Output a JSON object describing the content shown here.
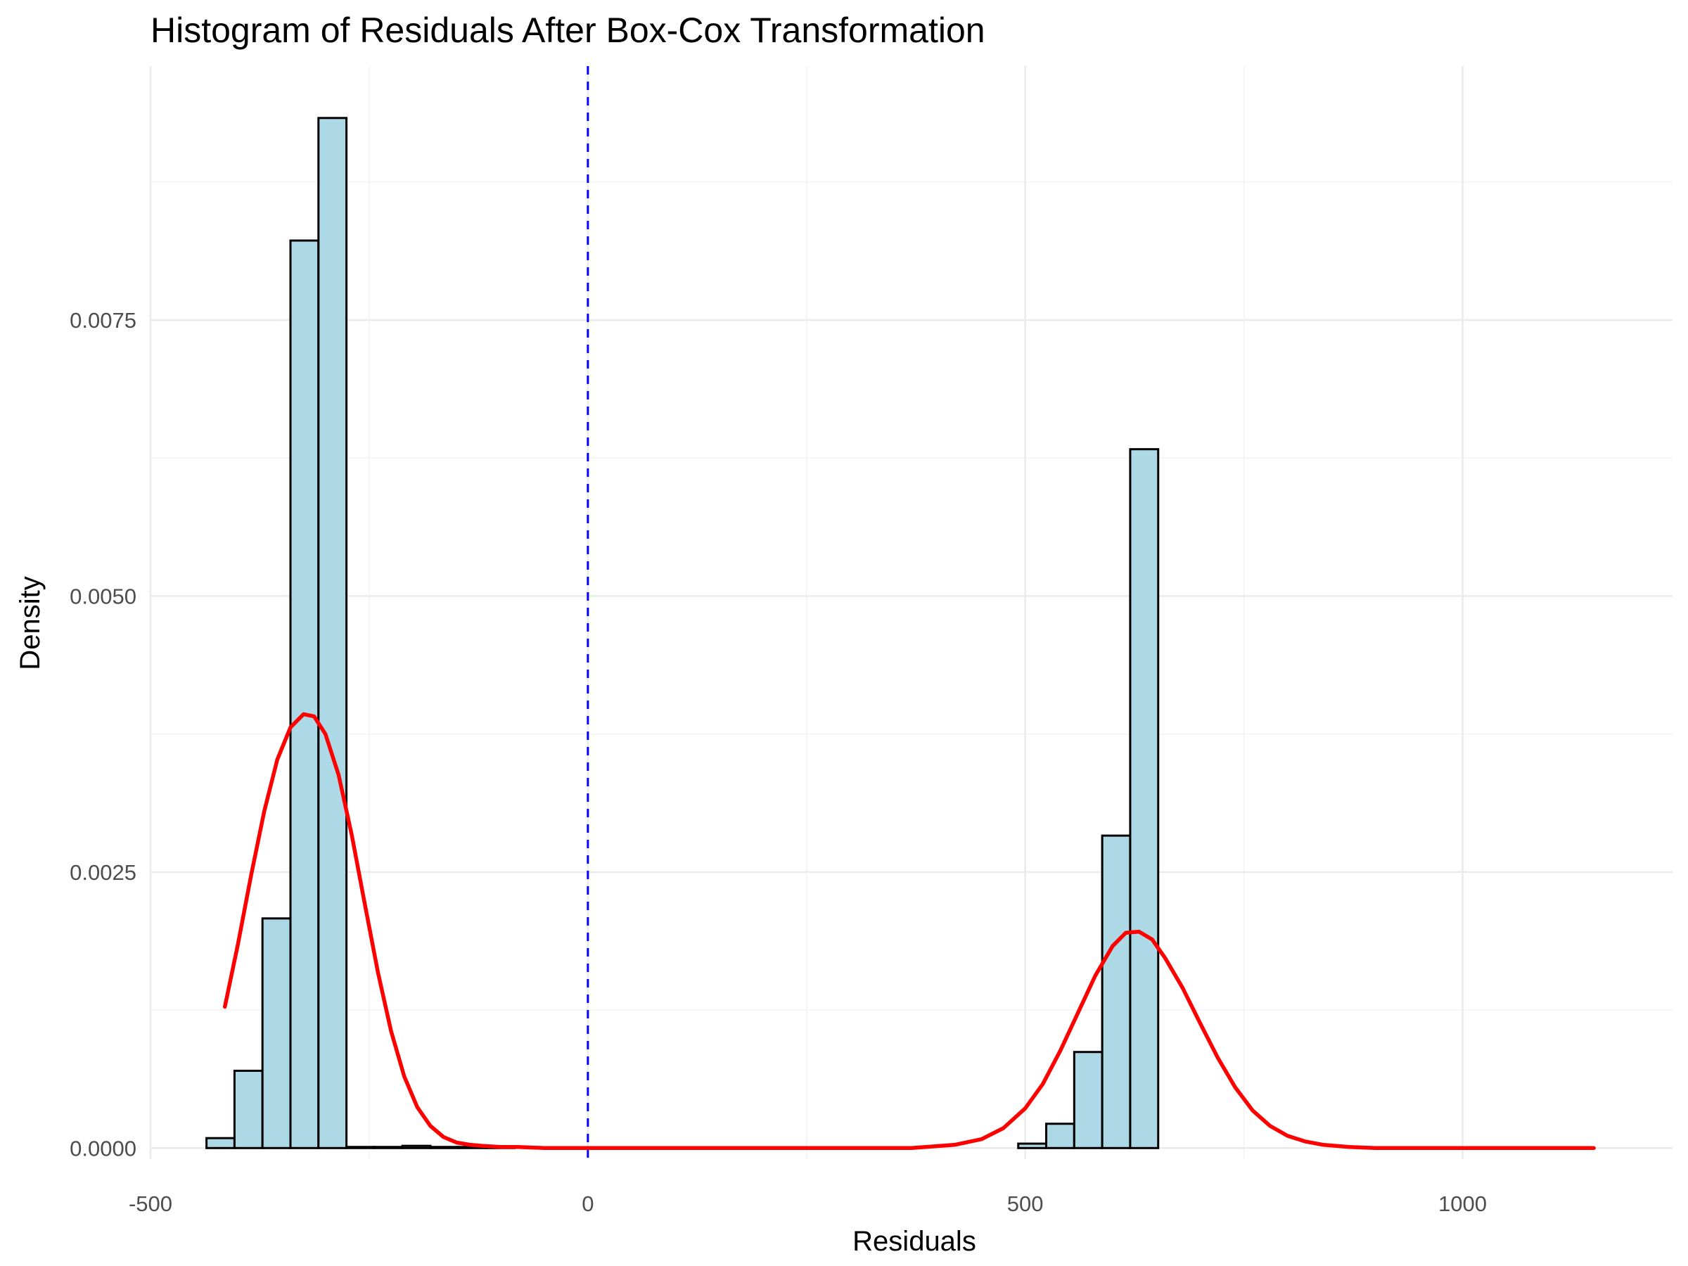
{
  "chart_data": {
    "type": "bar",
    "subtype": "histogram",
    "title": "Histogram of Residuals After Box-Cox Transformation",
    "xlabel": "Residuals",
    "ylabel": "Density",
    "xlim": [
      -500,
      1240
    ],
    "ylim": [
      -0.0001,
      0.0098
    ],
    "x_ticks": [
      -500,
      0,
      500,
      1000
    ],
    "x_tick_labels": [
      "-500",
      "0",
      "500",
      "1000"
    ],
    "y_ticks": [
      0,
      0.0025,
      0.005,
      0.0075
    ],
    "y_tick_labels": [
      "0.0000",
      "0.0025",
      "0.0050",
      "0.0075"
    ],
    "grid": true,
    "legend": "none",
    "colors": {
      "bar_fill": "#add8e6",
      "bar_outline": "#000000",
      "density_line": "#ff0000",
      "reference_line": "#0000ff"
    },
    "bins": [
      {
        "x0": -436,
        "x1": -404,
        "density": 9e-05
      },
      {
        "x0": -404,
        "x1": -372,
        "density": 0.0007
      },
      {
        "x0": -372,
        "x1": -340,
        "density": 0.00208
      },
      {
        "x0": -340,
        "x1": -308,
        "density": 0.00822
      },
      {
        "x0": -308,
        "x1": -276,
        "density": 0.00933
      },
      {
        "x0": -276,
        "x1": -244,
        "density": 1e-05
      },
      {
        "x0": -244,
        "x1": -212,
        "density": 1e-05
      },
      {
        "x0": -212,
        "x1": -180,
        "density": 2e-05
      },
      {
        "x0": -180,
        "x1": -148,
        "density": 1e-05
      },
      {
        "x0": -148,
        "x1": -116,
        "density": 1e-05
      },
      {
        "x0": -116,
        "x1": -84,
        "density": 1e-05
      },
      {
        "x0": -84,
        "x1": -52,
        "density": 0.0
      },
      {
        "x0": -52,
        "x1": -20,
        "density": 0.0
      },
      {
        "x0": -20,
        "x1": 12,
        "density": 0.0
      },
      {
        "x0": 12,
        "x1": 44,
        "density": 0.0
      },
      {
        "x0": 44,
        "x1": 76,
        "density": 0.0
      },
      {
        "x0": 76,
        "x1": 108,
        "density": 0.0
      },
      {
        "x0": 108,
        "x1": 140,
        "density": 0.0
      },
      {
        "x0": 140,
        "x1": 172,
        "density": 0.0
      },
      {
        "x0": 172,
        "x1": 204,
        "density": 0.0
      },
      {
        "x0": 204,
        "x1": 236,
        "density": 0.0
      },
      {
        "x0": 236,
        "x1": 268,
        "density": 0.0
      },
      {
        "x0": 268,
        "x1": 300,
        "density": 0.0
      },
      {
        "x0": 300,
        "x1": 332,
        "density": 0.0
      },
      {
        "x0": 332,
        "x1": 364,
        "density": 0.0
      },
      {
        "x0": 364,
        "x1": 396,
        "density": 0.0
      },
      {
        "x0": 396,
        "x1": 428,
        "density": 0.0
      },
      {
        "x0": 428,
        "x1": 460,
        "density": 0.0
      },
      {
        "x0": 460,
        "x1": 492,
        "density": 0.0
      },
      {
        "x0": 492,
        "x1": 524,
        "density": 4e-05
      },
      {
        "x0": 524,
        "x1": 556,
        "density": 0.00022
      },
      {
        "x0": 556,
        "x1": 588,
        "density": 0.00087
      },
      {
        "x0": 588,
        "x1": 620,
        "density": 0.00283
      },
      {
        "x0": 620,
        "x1": 652,
        "density": 0.00633
      },
      {
        "x0": 652,
        "x1": 684,
        "density": 0.0
      },
      {
        "x0": 684,
        "x1": 716,
        "density": 0.0
      },
      {
        "x0": 716,
        "x1": 748,
        "density": 0.0
      },
      {
        "x0": 748,
        "x1": 780,
        "density": 0.0
      },
      {
        "x0": 780,
        "x1": 812,
        "density": 0.0
      },
      {
        "x0": 812,
        "x1": 844,
        "density": 0.0
      },
      {
        "x0": 844,
        "x1": 876,
        "density": 0.0
      },
      {
        "x0": 876,
        "x1": 908,
        "density": 0.0
      },
      {
        "x0": 908,
        "x1": 940,
        "density": 0.0
      },
      {
        "x0": 940,
        "x1": 972,
        "density": 0.0
      },
      {
        "x0": 972,
        "x1": 1004,
        "density": 0.0
      },
      {
        "x0": 1004,
        "x1": 1036,
        "density": 0.0
      },
      {
        "x0": 1036,
        "x1": 1068,
        "density": 0.0
      },
      {
        "x0": 1068,
        "x1": 1100,
        "density": 0.0
      },
      {
        "x0": 1100,
        "x1": 1132,
        "density": 0.0
      },
      {
        "x0": 1132,
        "x1": 1164,
        "density": 0.0
      },
      {
        "x0": 1164,
        "x1": 1196,
        "density": 0.0
      }
    ],
    "density_curve": {
      "x": [
        -415,
        -400,
        -385,
        -370,
        -355,
        -340,
        -325,
        -313,
        -300,
        -285,
        -270,
        -255,
        -240,
        -225,
        -210,
        -195,
        -180,
        -165,
        -150,
        -135,
        -120,
        -100,
        -80,
        -50,
        0,
        100,
        200,
        300,
        370,
        420,
        450,
        475,
        500,
        520,
        540,
        560,
        580,
        600,
        615,
        630,
        645,
        660,
        680,
        700,
        720,
        740,
        760,
        780,
        800,
        820,
        840,
        870,
        900,
        1000,
        1100,
        1150
      ],
      "y": [
        0.00128,
        0.00185,
        0.00247,
        0.00305,
        0.00352,
        0.00381,
        0.00393,
        0.00391,
        0.00375,
        0.00338,
        0.00284,
        0.00221,
        0.00159,
        0.00106,
        0.00065,
        0.00037,
        0.0002,
        0.0001,
        5e-05,
        3e-05,
        2e-05,
        1e-05,
        1e-05,
        0.0,
        0.0,
        0.0,
        0.0,
        0.0,
        0.0,
        3e-05,
        8e-05,
        0.00018,
        0.00036,
        0.00058,
        0.00088,
        0.00122,
        0.00156,
        0.00183,
        0.00195,
        0.00196,
        0.00189,
        0.00172,
        0.00145,
        0.00113,
        0.00082,
        0.00055,
        0.00034,
        0.0002,
        0.00011,
        6e-05,
        3e-05,
        1e-05,
        0.0,
        0.0,
        0.0,
        0.0
      ]
    },
    "reference_line": {
      "x": 0,
      "style": "dashed"
    }
  }
}
